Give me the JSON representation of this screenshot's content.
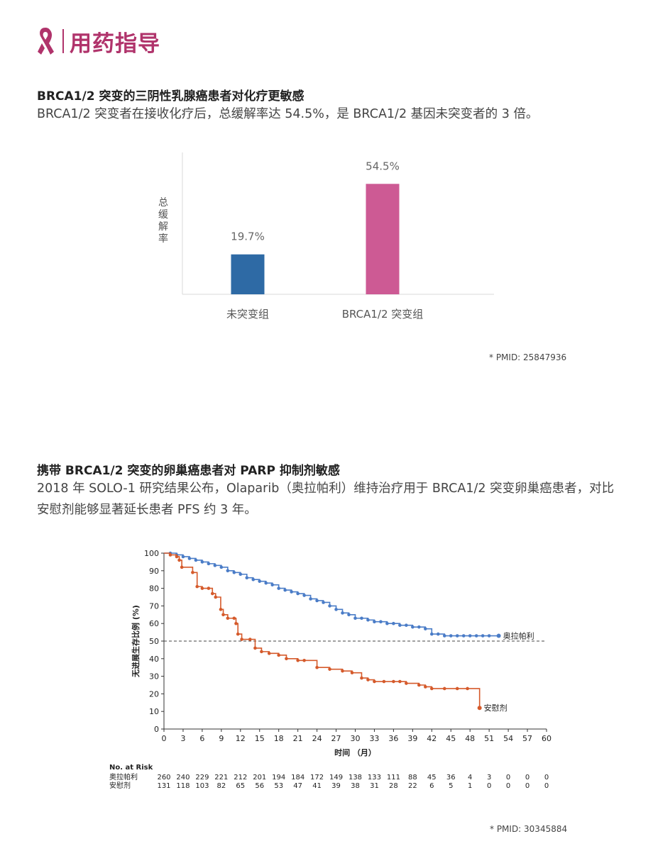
{
  "header": {
    "title": "用药指导",
    "ribbon_color": "#b0336b"
  },
  "section1": {
    "title": "BRCA1/2 突变的三阴性乳腺癌患者对化疗更敏感",
    "body": "BRCA1/2 突变者在接收化疗后，总缓解率达 54.5%，是 BRCA1/2 基因未突变者的 3 倍。",
    "pmid": "* PMID: 25847936"
  },
  "section2": {
    "title": "携带 BRCA1/2 突变的卵巢癌患者对 PARP 抑制剂敏感",
    "body": "2018 年 SOLO-1 研究结果公布，Olaparib（奥拉帕利）维持治疗用于 BRCA1/2 突变卵巢癌患者，对比安慰剂能够显著延长患者 PFS 约 3 年。",
    "pmid": "* PMID: 30345884"
  },
  "chart_data": [
    {
      "type": "bar",
      "ylabel": "总缓解率",
      "categories": [
        "未突变组",
        "BRCA1/2 突变组"
      ],
      "values": [
        19.7,
        54.5
      ],
      "value_labels": [
        "19.7%",
        "54.5%"
      ],
      "colors": [
        "#2e6aa5",
        "#cd5a94"
      ],
      "ylim": [
        0,
        70
      ],
      "grid": false
    },
    {
      "type": "line",
      "ylabel": "无进展生存比例 (%)",
      "xlabel": "时间 （月）",
      "xlim": [
        0,
        60
      ],
      "ylim": [
        0,
        100
      ],
      "xticks": [
        0,
        3,
        6,
        9,
        12,
        15,
        18,
        21,
        24,
        27,
        30,
        33,
        36,
        39,
        42,
        45,
        48,
        51,
        54,
        57,
        60
      ],
      "yticks": [
        0,
        10,
        20,
        30,
        40,
        50,
        60,
        70,
        80,
        90,
        100
      ],
      "reference_line": 50,
      "grid": false,
      "series": [
        {
          "name": "奥拉帕利",
          "color": "#4a7cc7",
          "x": [
            0,
            1,
            2,
            3,
            4,
            5,
            6,
            7,
            8,
            9,
            10,
            11,
            12,
            13,
            14,
            15,
            16,
            17,
            18,
            19,
            20,
            21,
            22,
            23,
            24,
            25,
            26,
            27,
            28,
            29,
            30,
            31,
            32,
            33,
            34,
            35,
            36,
            37,
            38,
            39,
            40,
            41,
            42,
            43,
            44,
            45,
            46,
            47,
            48,
            49,
            50,
            51,
            52.5
          ],
          "y": [
            100,
            100,
            99,
            98,
            97,
            96,
            95,
            94,
            93,
            92,
            90,
            89,
            88,
            86,
            85,
            84,
            83,
            82,
            80,
            79,
            78,
            77,
            76,
            74,
            73,
            72,
            70,
            68,
            66,
            65,
            63,
            63,
            62,
            61,
            61,
            60,
            60,
            59,
            59,
            58,
            58,
            57,
            54,
            54,
            53,
            53,
            53,
            53,
            53,
            53,
            53,
            53,
            53
          ],
          "end_label": "奥拉帕利"
        },
        {
          "name": "安慰剂",
          "color": "#d55a2b",
          "x": [
            0,
            1,
            2,
            2.4,
            2.8,
            4.5,
            5.2,
            6,
            7,
            7.6,
            8.1,
            8.9,
            9.3,
            10,
            11,
            11.3,
            11.6,
            12.2,
            13.5,
            14.3,
            15.3,
            16.5,
            18,
            19.2,
            21,
            22,
            24,
            26,
            28,
            29.5,
            31,
            32,
            33,
            34.5,
            36,
            37,
            38,
            40,
            41,
            42,
            44,
            46,
            47.6,
            49.5
          ],
          "y": [
            100,
            99,
            98,
            96,
            92,
            89,
            81,
            80,
            80,
            77,
            75,
            68,
            65,
            63,
            63,
            60,
            54,
            51,
            51,
            46,
            44,
            43,
            42,
            40,
            39,
            39,
            35,
            34,
            33,
            32,
            29,
            28,
            27,
            27,
            27,
            27,
            26,
            25,
            24,
            23,
            23,
            23,
            23,
            12
          ],
          "end_label": "安慰剂"
        }
      ],
      "at_risk": {
        "label": "No. at Risk",
        "rows": [
          {
            "name": "奥拉帕利",
            "values": [
              "260",
              "240",
              "229",
              "221",
              "212",
              "201",
              "194",
              "184",
              "172",
              "149",
              "138",
              "133",
              "111",
              "88",
              "45",
              "36",
              "4",
              "3",
              "0",
              "0",
              "0"
            ]
          },
          {
            "name": "安慰剂",
            "values": [
              "131",
              "118",
              "103",
              "82",
              "65",
              "56",
              "53",
              "47",
              "41",
              "39",
              "38",
              "31",
              "28",
              "22",
              "6",
              "5",
              "1",
              "0",
              "0",
              "0",
              "0"
            ]
          }
        ]
      }
    }
  ]
}
